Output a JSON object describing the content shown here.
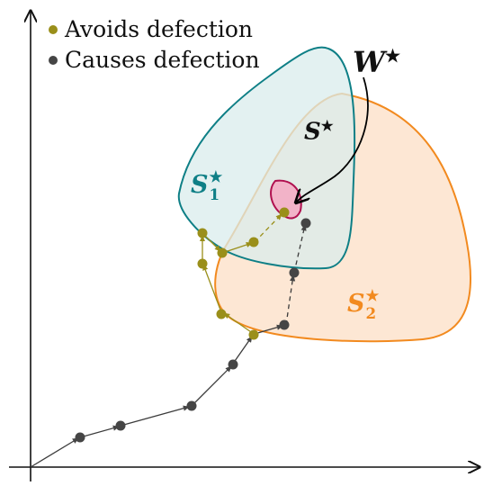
{
  "legend": {
    "avoids": {
      "label": "Avoids defection",
      "color": "#9a8f1a"
    },
    "causes": {
      "label": "Causes defection",
      "color": "#454545"
    }
  },
  "labels": {
    "w_star": "W",
    "s_star": "S",
    "s1": "S",
    "s1_sub": "1",
    "s2": "S",
    "s2_sub": "2",
    "star": "★"
  },
  "colors": {
    "s1_stroke": "#0e7f86",
    "s1_fill": "#d9ecec",
    "s2_stroke": "#f28a1f",
    "s2_fill": "#fde3cc",
    "w_stroke": "#b0104f",
    "w_fill": "#f2b3c8",
    "axis": "#111111",
    "olive": "#9a8f1a",
    "dark": "#454545"
  }
}
